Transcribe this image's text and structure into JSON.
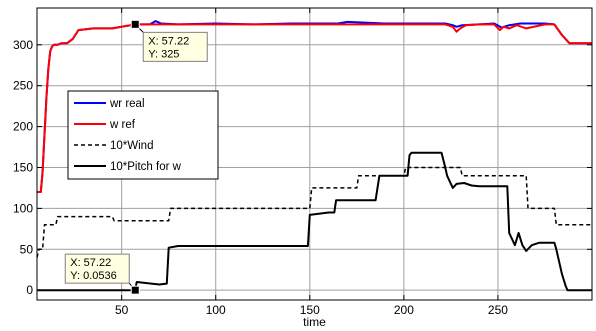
{
  "chart_data": {
    "type": "line",
    "title": "",
    "xlabel": "time",
    "ylabel": "",
    "xlim": [
      5,
      300
    ],
    "ylim": [
      -12,
      345
    ],
    "xticks": [
      50,
      100,
      150,
      200,
      250
    ],
    "yticks": [
      0,
      50,
      100,
      150,
      200,
      250,
      300
    ],
    "grid": true,
    "legend_position": "middle-left",
    "series": [
      {
        "name": "wr  real",
        "color": "#0000ff",
        "style": "solid",
        "x": [
          5,
          7,
          8,
          9,
          10,
          11,
          12,
          13,
          14,
          16,
          18,
          21,
          24,
          27,
          35,
          45,
          57.22,
          65,
          68,
          71,
          80,
          100,
          120,
          140,
          165,
          170,
          190,
          210,
          222,
          226,
          228,
          231,
          240,
          248,
          252,
          256,
          262,
          275,
          280,
          284,
          288,
          300
        ],
        "y": [
          120,
          120,
          145,
          190,
          235,
          270,
          292,
          298,
          300,
          300,
          302,
          302,
          307,
          318,
          320,
          320,
          325,
          325,
          329,
          326,
          325,
          326,
          325,
          326,
          326,
          328,
          326,
          326,
          326,
          324,
          322,
          324,
          325,
          326,
          321,
          324,
          326,
          326,
          325,
          312,
          302,
          302
        ]
      },
      {
        "name": "w  ref",
        "color": "#ff0000",
        "style": "solid",
        "x": [
          5,
          7,
          8,
          9,
          10,
          11,
          12,
          13,
          14,
          16,
          18,
          21,
          24,
          27,
          35,
          45,
          57.22,
          80,
          100,
          150,
          200,
          222,
          226,
          228,
          230,
          233,
          240,
          248,
          251,
          253,
          256,
          260,
          265,
          275,
          280,
          284,
          288,
          300
        ],
        "y": [
          120,
          120,
          145,
          190,
          235,
          270,
          292,
          298,
          300,
          300,
          302,
          302,
          307,
          318,
          320,
          320,
          325,
          325,
          325,
          325,
          325,
          325,
          322,
          316,
          320,
          324,
          325,
          325,
          318,
          322,
          320,
          324,
          320,
          325,
          325,
          312,
          302,
          302
        ]
      },
      {
        "name": "10*Wind",
        "color": "#000000",
        "style": "dashed",
        "x": [
          5,
          6,
          8,
          9,
          15,
          16,
          45,
          46,
          75,
          76,
          150,
          151,
          175,
          176,
          200,
          201,
          230,
          231,
          265,
          266,
          280,
          281,
          300
        ],
        "y": [
          40,
          50,
          50,
          80,
          80,
          90,
          90,
          85,
          85,
          100,
          100,
          125,
          125,
          140,
          140,
          150,
          150,
          140,
          140,
          100,
          100,
          80,
          80
        ]
      },
      {
        "name": "10*Pitch for w",
        "color": "#000000",
        "style": "solid",
        "x": [
          5,
          57.22,
          58,
          70,
          74,
          75,
          80,
          140,
          149,
          150,
          160,
          163,
          164,
          175,
          185,
          187,
          188,
          202,
          203,
          204,
          220,
          222,
          223,
          226,
          228,
          232,
          236,
          240,
          255,
          256,
          259,
          261,
          263,
          265,
          268,
          272,
          280,
          281,
          284,
          286,
          287,
          300
        ],
        "y": [
          0,
          0,
          10,
          7,
          8,
          52,
          54,
          54,
          54,
          92,
          95,
          95,
          110,
          110,
          110,
          140,
          140,
          140,
          165,
          168,
          168,
          150,
          140,
          125,
          130,
          131,
          128,
          127,
          127,
          70,
          55,
          70,
          55,
          48,
          55,
          58,
          58,
          50,
          20,
          5,
          0,
          0
        ]
      }
    ],
    "annotations": [
      {
        "x_label": "X: 57.22",
        "y_label": "Y: 325",
        "point_x": 57.22,
        "point_y": 325,
        "placement": "below-right"
      },
      {
        "x_label": "X: 57.22",
        "y_label": "Y: 0.0536",
        "point_x": 57.22,
        "point_y": 0.0536,
        "placement": "above-left"
      }
    ]
  }
}
